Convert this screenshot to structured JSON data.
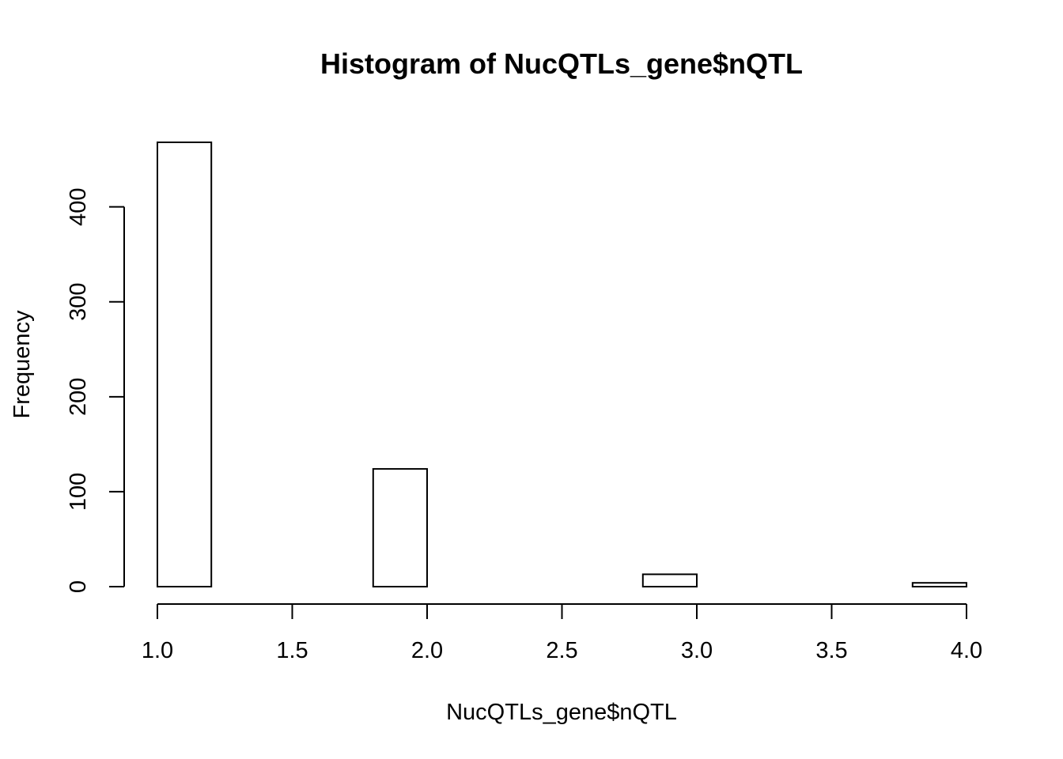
{
  "chart_data": {
    "type": "bar",
    "title": "Histogram of NucQTLs_gene$nQTL",
    "xlabel": "NucQTLs_gene$nQTL",
    "ylabel": "Frequency",
    "bins": [
      {
        "start": 1.0,
        "end": 1.2,
        "count": 468
      },
      {
        "start": 1.2,
        "end": 1.4,
        "count": 0
      },
      {
        "start": 1.4,
        "end": 1.6,
        "count": 0
      },
      {
        "start": 1.6,
        "end": 1.8,
        "count": 0
      },
      {
        "start": 1.8,
        "end": 2.0,
        "count": 124
      },
      {
        "start": 2.0,
        "end": 2.2,
        "count": 0
      },
      {
        "start": 2.2,
        "end": 2.4,
        "count": 0
      },
      {
        "start": 2.4,
        "end": 2.6,
        "count": 0
      },
      {
        "start": 2.6,
        "end": 2.8,
        "count": 0
      },
      {
        "start": 2.8,
        "end": 3.0,
        "count": 13
      },
      {
        "start": 3.0,
        "end": 3.2,
        "count": 0
      },
      {
        "start": 3.2,
        "end": 3.4,
        "count": 0
      },
      {
        "start": 3.4,
        "end": 3.6,
        "count": 0
      },
      {
        "start": 3.6,
        "end": 3.8,
        "count": 0
      },
      {
        "start": 3.8,
        "end": 4.0,
        "count": 4
      }
    ],
    "xlim": [
      1.0,
      4.0
    ],
    "ylim": [
      0,
      468
    ],
    "xticks": [
      1.0,
      1.5,
      2.0,
      2.5,
      3.0,
      3.5,
      4.0
    ],
    "xtick_labels": [
      "1.0",
      "1.5",
      "2.0",
      "2.5",
      "3.0",
      "3.5",
      "4.0"
    ],
    "yticks": [
      0,
      100,
      200,
      300,
      400
    ],
    "ytick_labels": [
      "0",
      "100",
      "200",
      "300",
      "400"
    ],
    "grid": false,
    "colors": {
      "bar_fill": "#ffffff",
      "bar_stroke": "#000000"
    }
  }
}
